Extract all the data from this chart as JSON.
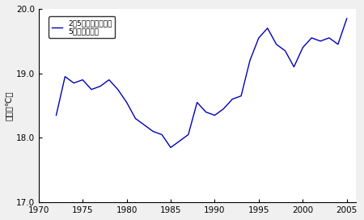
{
  "title": "",
  "ylabel": "水温（℃）",
  "xlabel": "",
  "legend_label": "2～5月の平均水温の\n5ヵ年移動平均",
  "xlim": [
    1970,
    2006
  ],
  "ylim": [
    17.0,
    20.0
  ],
  "yticks": [
    17.0,
    18.0,
    19.0,
    20.0
  ],
  "xticks": [
    1970,
    1975,
    1980,
    1985,
    1990,
    1995,
    2000,
    2005
  ],
  "line_color": "#0000bb",
  "bg_color": "#f0f0f0",
  "plot_bg": "#ffffff",
  "years": [
    1972,
    1973,
    1974,
    1975,
    1976,
    1977,
    1978,
    1979,
    1980,
    1981,
    1982,
    1983,
    1984,
    1985,
    1986,
    1987,
    1988,
    1989,
    1990,
    1991,
    1992,
    1993,
    1994,
    1995,
    1996,
    1997,
    1998,
    1999,
    2000,
    2001,
    2002,
    2003,
    2004,
    2005
  ],
  "values": [
    18.35,
    18.95,
    18.85,
    18.9,
    18.75,
    18.8,
    18.9,
    18.75,
    18.55,
    18.3,
    18.2,
    18.1,
    18.05,
    17.85,
    17.95,
    18.05,
    18.55,
    18.4,
    18.35,
    18.45,
    18.6,
    18.65,
    19.2,
    19.55,
    19.7,
    19.45,
    19.35,
    19.1,
    19.4,
    19.55,
    19.5,
    19.55,
    19.45,
    19.85
  ]
}
